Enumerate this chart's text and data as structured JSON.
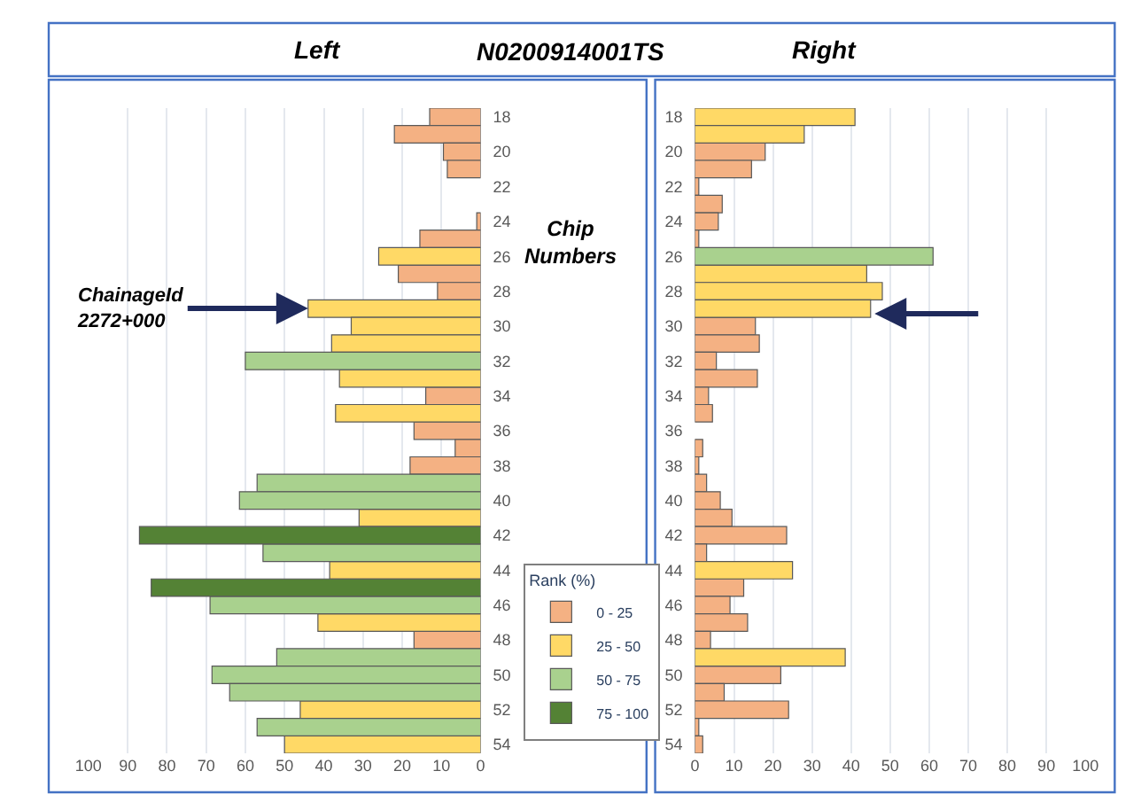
{
  "chart_data": [
    {
      "type": "bar",
      "orientation": "horizontal",
      "title": "Left",
      "legend_title": "Rank (%)",
      "legend": "right",
      "grid": "x",
      "categories": [
        "18",
        null,
        "20",
        null,
        "22",
        null,
        "24",
        null,
        "26",
        null,
        "28",
        null,
        "30",
        null,
        "32",
        null,
        "34",
        null,
        "36",
        null,
        "38",
        null,
        "40",
        null,
        "42",
        null,
        "44",
        null,
        "46",
        null,
        "48",
        null,
        "50",
        null,
        "52",
        null,
        "54"
      ],
      "xlim": [
        100,
        0
      ],
      "xticks": [
        100,
        90,
        80,
        70,
        60,
        50,
        40,
        30,
        20,
        10,
        0
      ],
      "annotations": [
        "N0200914001TS",
        "Chip Numbers",
        {
          "text": "ChainageId\n2272+000",
          "x": 44
        }
      ],
      "series": [
        {
          "name": "0 - 25",
          "color": "#f4b183",
          "values": [
            13,
            22,
            9.5,
            8.5,
            null,
            null,
            1,
            15.5,
            null,
            21,
            11,
            null,
            null,
            null,
            null,
            null,
            14,
            null,
            17,
            6.5,
            18,
            null,
            null,
            null,
            null,
            null,
            null,
            null,
            null,
            null,
            17,
            null,
            null,
            null,
            null,
            null,
            null
          ]
        },
        {
          "name": "25 - 50",
          "color": "#ffd966",
          "values": [
            null,
            null,
            null,
            null,
            null,
            null,
            null,
            null,
            26,
            null,
            null,
            44,
            33,
            38,
            null,
            36,
            null,
            37,
            null,
            null,
            null,
            null,
            null,
            31,
            null,
            null,
            38.5,
            null,
            null,
            41.5,
            null,
            null,
            null,
            null,
            46,
            null,
            50
          ]
        },
        {
          "name": "50 - 75",
          "color": "#a9d18e",
          "values": [
            null,
            null,
            null,
            null,
            null,
            null,
            null,
            null,
            null,
            null,
            null,
            null,
            null,
            null,
            60,
            null,
            null,
            null,
            null,
            null,
            null,
            57,
            61.5,
            null,
            null,
            55.5,
            null,
            null,
            69,
            null,
            null,
            52,
            68.5,
            64,
            null,
            57,
            null
          ]
        },
        {
          "name": "75 - 100",
          "color": "#548235",
          "values": [
            null,
            null,
            null,
            null,
            null,
            null,
            null,
            null,
            null,
            null,
            null,
            null,
            null,
            null,
            null,
            null,
            null,
            null,
            null,
            null,
            null,
            null,
            null,
            null,
            87,
            null,
            null,
            84,
            null,
            null,
            null,
            null,
            null,
            null,
            null,
            null,
            null
          ]
        }
      ]
    },
    {
      "type": "bar",
      "orientation": "horizontal",
      "title": "Right",
      "grid": "x",
      "categories": [
        "18",
        null,
        "20",
        null,
        "22",
        null,
        "24",
        null,
        "26",
        null,
        "28",
        null,
        "30",
        null,
        "32",
        null,
        "34",
        null,
        "36",
        null,
        "38",
        null,
        "40",
        null,
        "42",
        null,
        "44",
        null,
        "46",
        null,
        "48",
        null,
        "50",
        null,
        "52",
        null,
        "54"
      ],
      "xlim": [
        0,
        100
      ],
      "xticks": [
        0,
        10,
        20,
        30,
        40,
        50,
        60,
        70,
        80,
        90,
        100
      ],
      "series": [
        {
          "color": "#f4b183",
          "values": [
            null,
            null,
            18,
            14.5,
            1,
            7,
            6,
            1,
            null,
            null,
            null,
            null,
            15.5,
            16.5,
            5.5,
            16,
            3.5,
            4.5,
            null,
            2,
            1,
            3,
            6.5,
            9.5,
            23.5,
            3,
            null,
            12.5,
            9,
            13.5,
            4,
            null,
            22,
            7.5,
            24,
            1,
            2
          ]
        },
        {
          "color": "#ffd966",
          "values": [
            41,
            28,
            null,
            null,
            null,
            null,
            null,
            null,
            null,
            44,
            48,
            45,
            null,
            null,
            null,
            null,
            null,
            null,
            null,
            null,
            null,
            null,
            null,
            null,
            null,
            null,
            25,
            null,
            null,
            null,
            null,
            38.5,
            null,
            null,
            null,
            null,
            null
          ]
        },
        {
          "color": "#a9d18e",
          "values": [
            null,
            null,
            null,
            null,
            null,
            null,
            null,
            null,
            61,
            null,
            null,
            null,
            null,
            null,
            null,
            null,
            null,
            null,
            null,
            null,
            null,
            null,
            null,
            null,
            null,
            null,
            null,
            null,
            null,
            null,
            null,
            null,
            null,
            null,
            null,
            null,
            null
          ]
        }
      ]
    }
  ]
}
